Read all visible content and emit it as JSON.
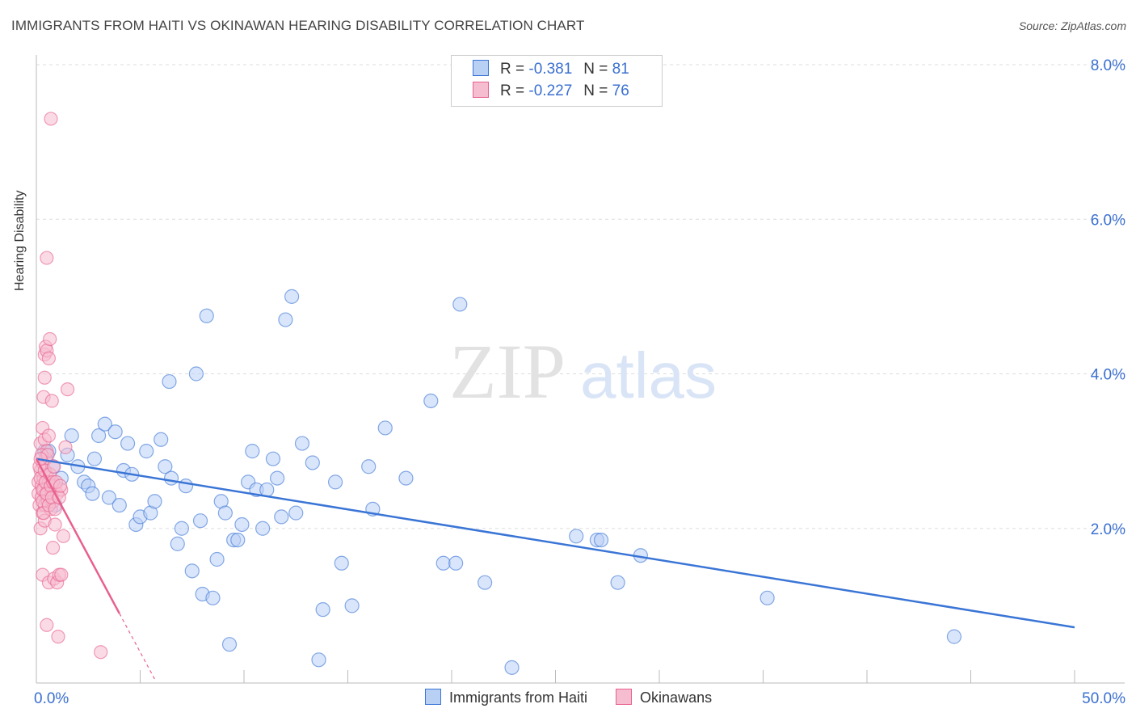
{
  "title": "IMMIGRANTS FROM HAITI VS OKINAWAN HEARING DISABILITY CORRELATION CHART",
  "source": "Source: ZipAtlas.com",
  "legend": {
    "r_label": "R =",
    "n_label": "N =",
    "series1": {
      "r": "-0.381",
      "n": "81"
    },
    "series2": {
      "r": "-0.227",
      "n": "76"
    }
  },
  "bottom_legend": {
    "series1": "Immigrants from Haiti",
    "series2": "Okinawans"
  },
  "colors": {
    "blue": "#3a75d6",
    "blue_fill": "#b9d0f5",
    "pink": "#e8608c",
    "pink_fill": "#f6bcd0",
    "axis_text": "#3a6fd0"
  },
  "chart_data": {
    "type": "scatter",
    "title": "IMMIGRANTS FROM HAITI VS OKINAWAN HEARING DISABILITY CORRELATION CHART",
    "xlabel": "",
    "ylabel": "Hearing Disability",
    "xlim": [
      0,
      50
    ],
    "ylim": [
      0,
      8.0
    ],
    "x_tick_labels": [
      "0.0%",
      "50.0%"
    ],
    "y_ticks": [
      2.0,
      4.0,
      6.0,
      8.0
    ],
    "y_tick_labels": [
      "2.0%",
      "4.0%",
      "6.0%",
      "8.0%"
    ],
    "watermark": {
      "zip": "ZIP",
      "atlas": "atlas"
    },
    "series": [
      {
        "name": "Immigrants from Haiti",
        "trend": {
          "x": [
            0.0,
            50.0
          ],
          "y": [
            2.9,
            0.72
          ]
        },
        "points": [
          [
            0.4,
            3.0
          ],
          [
            0.5,
            2.95
          ],
          [
            0.6,
            3.0
          ],
          [
            0.8,
            2.8
          ],
          [
            0.9,
            2.3
          ],
          [
            1.2,
            2.65
          ],
          [
            1.5,
            2.95
          ],
          [
            1.7,
            3.2
          ],
          [
            2.0,
            2.8
          ],
          [
            2.3,
            2.6
          ],
          [
            2.5,
            2.55
          ],
          [
            2.7,
            2.45
          ],
          [
            2.8,
            2.9
          ],
          [
            3.0,
            3.2
          ],
          [
            3.3,
            3.35
          ],
          [
            3.5,
            2.4
          ],
          [
            3.8,
            3.25
          ],
          [
            4.0,
            2.3
          ],
          [
            4.2,
            2.75
          ],
          [
            4.4,
            3.1
          ],
          [
            4.6,
            2.7
          ],
          [
            4.8,
            2.05
          ],
          [
            5.0,
            2.15
          ],
          [
            5.3,
            3.0
          ],
          [
            5.5,
            2.2
          ],
          [
            5.7,
            2.35
          ],
          [
            6.0,
            3.15
          ],
          [
            6.2,
            2.8
          ],
          [
            6.4,
            3.9
          ],
          [
            6.5,
            2.65
          ],
          [
            6.8,
            1.8
          ],
          [
            7.0,
            2.0
          ],
          [
            7.2,
            2.55
          ],
          [
            7.5,
            1.45
          ],
          [
            7.7,
            4.0
          ],
          [
            7.9,
            2.1
          ],
          [
            8.0,
            1.15
          ],
          [
            8.2,
            4.75
          ],
          [
            8.5,
            1.1
          ],
          [
            8.7,
            1.6
          ],
          [
            8.9,
            2.35
          ],
          [
            9.1,
            2.2
          ],
          [
            9.3,
            0.5
          ],
          [
            9.5,
            1.85
          ],
          [
            9.7,
            1.85
          ],
          [
            9.9,
            2.05
          ],
          [
            10.2,
            2.6
          ],
          [
            10.4,
            3.0
          ],
          [
            10.6,
            2.5
          ],
          [
            10.9,
            2.0
          ],
          [
            11.1,
            2.5
          ],
          [
            11.4,
            2.9
          ],
          [
            11.6,
            2.65
          ],
          [
            11.8,
            2.15
          ],
          [
            12.0,
            4.7
          ],
          [
            12.3,
            5.0
          ],
          [
            12.5,
            2.2
          ],
          [
            12.8,
            3.1
          ],
          [
            13.3,
            2.85
          ],
          [
            13.6,
            0.3
          ],
          [
            13.8,
            0.95
          ],
          [
            14.4,
            2.6
          ],
          [
            14.7,
            1.55
          ],
          [
            15.2,
            1.0
          ],
          [
            16.0,
            2.8
          ],
          [
            16.2,
            2.25
          ],
          [
            16.8,
            3.3
          ],
          [
            17.8,
            2.65
          ],
          [
            19.0,
            3.65
          ],
          [
            19.6,
            1.55
          ],
          [
            20.2,
            1.55
          ],
          [
            20.4,
            4.9
          ],
          [
            21.6,
            1.3
          ],
          [
            22.9,
            0.2
          ],
          [
            26.0,
            1.9
          ],
          [
            27.0,
            1.85
          ],
          [
            27.2,
            1.85
          ],
          [
            28.0,
            1.3
          ],
          [
            29.1,
            1.65
          ],
          [
            35.2,
            1.1
          ],
          [
            44.2,
            0.6
          ]
        ]
      },
      {
        "name": "Okinawans",
        "trend": {
          "x": [
            0.0,
            4.0
          ],
          "y": [
            2.9,
            0.9
          ]
        },
        "trend_dashed": {
          "x": [
            4.0,
            5.7
          ],
          "y": [
            0.9,
            0.05
          ]
        },
        "points": [
          [
            0.1,
            2.6
          ],
          [
            0.1,
            2.45
          ],
          [
            0.15,
            2.3
          ],
          [
            0.2,
            3.1
          ],
          [
            0.2,
            2.75
          ],
          [
            0.2,
            2.0
          ],
          [
            0.25,
            2.55
          ],
          [
            0.25,
            2.4
          ],
          [
            0.3,
            3.3
          ],
          [
            0.3,
            2.85
          ],
          [
            0.3,
            2.2
          ],
          [
            0.3,
            1.4
          ],
          [
            0.35,
            3.7
          ],
          [
            0.35,
            2.65
          ],
          [
            0.35,
            2.5
          ],
          [
            0.4,
            4.25
          ],
          [
            0.4,
            3.95
          ],
          [
            0.4,
            3.15
          ],
          [
            0.4,
            2.3
          ],
          [
            0.4,
            2.1
          ],
          [
            0.45,
            4.35
          ],
          [
            0.45,
            2.9
          ],
          [
            0.45,
            2.45
          ],
          [
            0.5,
            5.5
          ],
          [
            0.5,
            4.3
          ],
          [
            0.5,
            3.0
          ],
          [
            0.5,
            2.7
          ],
          [
            0.5,
            0.75
          ],
          [
            0.55,
            2.55
          ],
          [
            0.55,
            2.35
          ],
          [
            0.6,
            4.2
          ],
          [
            0.6,
            3.2
          ],
          [
            0.6,
            2.6
          ],
          [
            0.6,
            1.3
          ],
          [
            0.65,
            4.45
          ],
          [
            0.65,
            2.4
          ],
          [
            0.7,
            7.3
          ],
          [
            0.7,
            2.25
          ],
          [
            0.75,
            3.65
          ],
          [
            0.75,
            2.5
          ],
          [
            0.8,
            2.35
          ],
          [
            0.8,
            1.75
          ],
          [
            0.85,
            1.35
          ],
          [
            0.9,
            2.55
          ],
          [
            0.9,
            2.05
          ],
          [
            1.0,
            2.45
          ],
          [
            1.0,
            1.3
          ],
          [
            1.05,
            0.6
          ],
          [
            1.1,
            1.4
          ],
          [
            1.2,
            2.5
          ],
          [
            1.2,
            1.4
          ],
          [
            1.3,
            1.9
          ],
          [
            1.4,
            3.05
          ],
          [
            1.5,
            3.8
          ],
          [
            3.1,
            0.4
          ],
          [
            0.15,
            2.8
          ],
          [
            0.2,
            2.65
          ],
          [
            0.25,
            2.95
          ],
          [
            0.3,
            2.5
          ],
          [
            0.3,
            2.35
          ],
          [
            0.35,
            2.2
          ],
          [
            0.4,
            2.75
          ],
          [
            0.45,
            2.6
          ],
          [
            0.5,
            2.45
          ],
          [
            0.55,
            2.95
          ],
          [
            0.6,
            2.3
          ],
          [
            0.65,
            2.7
          ],
          [
            0.7,
            2.55
          ],
          [
            0.75,
            2.4
          ],
          [
            0.8,
            2.6
          ],
          [
            0.85,
            2.8
          ],
          [
            0.9,
            2.25
          ],
          [
            0.95,
            2.6
          ],
          [
            1.1,
            2.4
          ],
          [
            1.15,
            2.55
          ],
          [
            0.2,
            2.9
          ]
        ]
      }
    ]
  }
}
